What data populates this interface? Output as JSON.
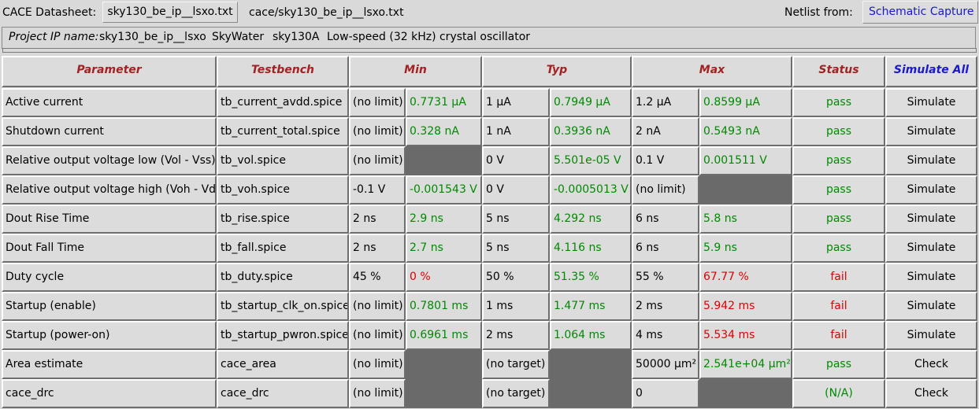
{
  "header": {
    "datasheet_label": "CACE Datasheet:",
    "datasheet_file": "sky130_be_ip__lsxo.txt",
    "datasheet_path": "cace/sky130_be_ip__lsxo.txt",
    "netlist_label": "Netlist from:",
    "netlist_source": "Schematic Capture"
  },
  "project": {
    "label": "Project IP name:",
    "name": "sky130_be_ip__lsxo",
    "foundry": "SkyWater",
    "node": "sky130A",
    "description": "Low-speed (32 kHz) crystal oscillator"
  },
  "columns": {
    "parameter": "Parameter",
    "testbench": "Testbench",
    "min": "Min",
    "typ": "Typ",
    "max": "Max",
    "status": "Status",
    "simulate_all": "Simulate All"
  },
  "rows": [
    {
      "param": "Active current",
      "tb": "tb_current_avdd.spice",
      "min_spec": "(no limit)",
      "min_val": "0.7731 µA",
      "min_ok": true,
      "typ_spec": "1 µA",
      "typ_val": "0.7949 µA",
      "typ_ok": true,
      "max_spec": "1.2 µA",
      "max_val": "0.8599 µA",
      "max_ok": true,
      "status": "pass",
      "action": "Simulate"
    },
    {
      "param": "Shutdown current",
      "tb": "tb_current_total.spice",
      "min_spec": "(no limit)",
      "min_val": "0.328 nA",
      "min_ok": true,
      "typ_spec": "1 nA",
      "typ_val": "0.3936 nA",
      "typ_ok": true,
      "max_spec": "2 nA",
      "max_val": "0.5493 nA",
      "max_ok": true,
      "status": "pass",
      "action": "Simulate"
    },
    {
      "param": "Relative output voltage low (Vol - Vss)",
      "tb": "tb_vol.spice",
      "min_spec": "(no limit)",
      "min_val": null,
      "min_ok": true,
      "typ_spec": "0 V",
      "typ_val": "5.501e-05 V",
      "typ_ok": true,
      "max_spec": "0.1 V",
      "max_val": "0.001511 V",
      "max_ok": true,
      "status": "pass",
      "action": "Simulate"
    },
    {
      "param": "Relative output voltage high (Voh - Vdd)",
      "tb": "tb_voh.spice",
      "min_spec": "-0.1 V",
      "min_val": "-0.001543 V",
      "min_ok": true,
      "typ_spec": "0 V",
      "typ_val": "-0.0005013 V",
      "typ_ok": true,
      "max_spec": "(no limit)",
      "max_val": null,
      "max_ok": true,
      "status": "pass",
      "action": "Simulate"
    },
    {
      "param": "Dout Rise Time",
      "tb": "tb_rise.spice",
      "min_spec": "2 ns",
      "min_val": "2.9 ns",
      "min_ok": true,
      "typ_spec": "5 ns",
      "typ_val": "4.292 ns",
      "typ_ok": true,
      "max_spec": "6 ns",
      "max_val": "5.8 ns",
      "max_ok": true,
      "status": "pass",
      "action": "Simulate"
    },
    {
      "param": "Dout Fall Time",
      "tb": "tb_fall.spice",
      "min_spec": "2 ns",
      "min_val": "2.7 ns",
      "min_ok": true,
      "typ_spec": "5 ns",
      "typ_val": "4.116 ns",
      "typ_ok": true,
      "max_spec": "6 ns",
      "max_val": "5.9 ns",
      "max_ok": true,
      "status": "pass",
      "action": "Simulate"
    },
    {
      "param": "Duty cycle",
      "tb": "tb_duty.spice",
      "min_spec": "45 %",
      "min_val": "0 %",
      "min_ok": false,
      "typ_spec": "50 %",
      "typ_val": "51.35 %",
      "typ_ok": true,
      "max_spec": "55 %",
      "max_val": "67.77 %",
      "max_ok": false,
      "status": "fail",
      "action": "Simulate"
    },
    {
      "param": "Startup (enable)",
      "tb": "tb_startup_clk_on.spice",
      "min_spec": "(no limit)",
      "min_val": "0.7801 ms",
      "min_ok": true,
      "typ_spec": "1 ms",
      "typ_val": "1.477 ms",
      "typ_ok": true,
      "max_spec": "2 ms",
      "max_val": "5.942 ms",
      "max_ok": false,
      "status": "fail",
      "action": "Simulate"
    },
    {
      "param": "Startup (power-on)",
      "tb": "tb_startup_pwron.spice",
      "min_spec": "(no limit)",
      "min_val": "0.6961 ms",
      "min_ok": true,
      "typ_spec": "2 ms",
      "typ_val": "1.064 ms",
      "typ_ok": true,
      "max_spec": "4 ms",
      "max_val": "5.534 ms",
      "max_ok": false,
      "status": "fail",
      "action": "Simulate"
    },
    {
      "param": "Area estimate",
      "tb": "cace_area",
      "min_spec": "(no limit)",
      "min_val": null,
      "min_ok": true,
      "typ_spec": "(no target)",
      "typ_val": null,
      "typ_ok": true,
      "max_spec": "50000 µm²",
      "max_val": "2.541e+04 µm²",
      "max_ok": true,
      "status": "pass",
      "action": "Check"
    },
    {
      "param": "cace_drc",
      "tb": "cace_drc",
      "min_spec": "(no limit)",
      "min_val": null,
      "min_ok": true,
      "typ_spec": "(no target)",
      "typ_val": null,
      "typ_ok": true,
      "max_spec": "0",
      "max_val": null,
      "max_ok": true,
      "status": "(N/A)",
      "action": "Check"
    }
  ],
  "colors": {
    "pass": "#008a00",
    "fail": "#e00000",
    "header": "#a32222",
    "simulate_all": "#1a1acc",
    "netlist_source": "#1a1acc"
  }
}
